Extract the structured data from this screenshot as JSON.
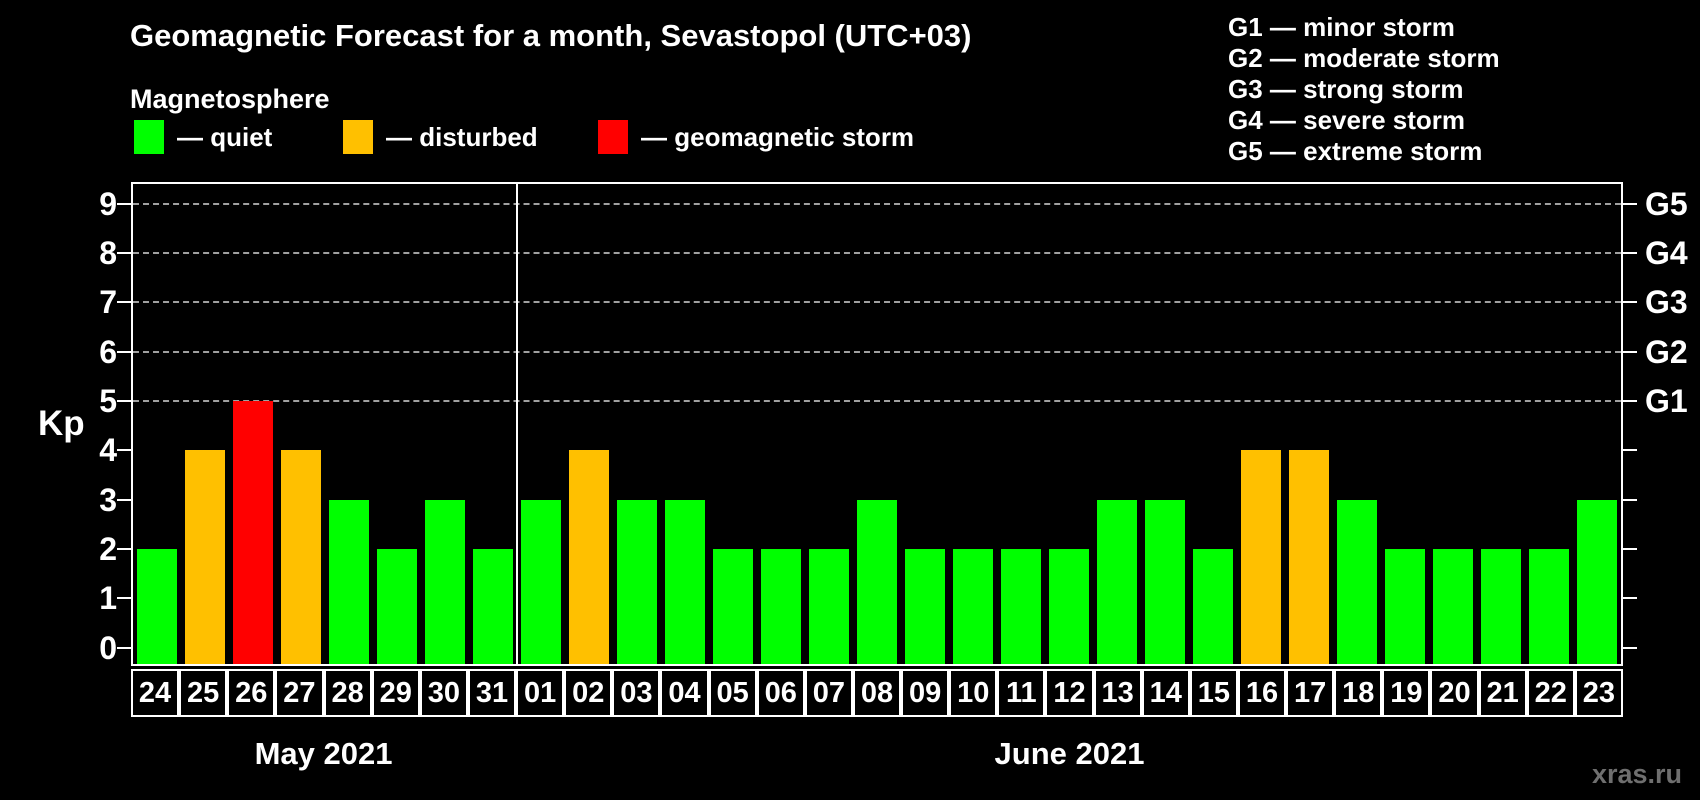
{
  "title": "Geomagnetic Forecast for a month, Sevastopol (UTC+03)",
  "subtitle": "Magnetosphere",
  "legend": {
    "items": [
      {
        "id": "quiet",
        "label": "— quiet",
        "color": "#00ff00"
      },
      {
        "id": "disturbed",
        "label": "— disturbed",
        "color": "#ffc000"
      },
      {
        "id": "storm",
        "label": "— geomagnetic storm",
        "color": "#ff0000"
      }
    ]
  },
  "storm_scale": {
    "lines": [
      "G1 — minor storm",
      "G2 — moderate storm",
      "G3 — strong storm",
      "G4 — severe storm",
      "G5 — extreme storm"
    ]
  },
  "watermark": "xras.ru",
  "chart_data": {
    "type": "bar",
    "title": "Geomagnetic Forecast for a month, Sevastopol (UTC+03)",
    "ylabel": "Kp",
    "ylim": [
      0,
      9
    ],
    "yticks": [
      0,
      1,
      2,
      3,
      4,
      5,
      6,
      7,
      8,
      9
    ],
    "gridlines_at": [
      5,
      6,
      7,
      8,
      9
    ],
    "grid": "dashed horizontal at G-storm levels only",
    "right_axis": [
      {
        "kp": 5,
        "label": "G1"
      },
      {
        "kp": 6,
        "label": "G2"
      },
      {
        "kp": 7,
        "label": "G3"
      },
      {
        "kp": 8,
        "label": "G4"
      },
      {
        "kp": 9,
        "label": "G5"
      }
    ],
    "months": [
      {
        "label": "May 2021",
        "days": 8
      },
      {
        "label": "June 2021",
        "days": 23
      }
    ],
    "categories": [
      "24",
      "25",
      "26",
      "27",
      "28",
      "29",
      "30",
      "31",
      "01",
      "02",
      "03",
      "04",
      "05",
      "06",
      "07",
      "08",
      "09",
      "10",
      "11",
      "12",
      "13",
      "14",
      "15",
      "16",
      "17",
      "18",
      "19",
      "20",
      "21",
      "22",
      "23"
    ],
    "values": [
      2,
      4,
      5,
      4,
      3,
      2,
      3,
      2,
      3,
      4,
      3,
      3,
      2,
      2,
      2,
      3,
      2,
      2,
      2,
      2,
      3,
      3,
      2,
      4,
      4,
      3,
      2,
      2,
      2,
      2,
      3
    ],
    "statuses": [
      "quiet",
      "disturbed",
      "storm",
      "disturbed",
      "quiet",
      "quiet",
      "quiet",
      "quiet",
      "quiet",
      "disturbed",
      "quiet",
      "quiet",
      "quiet",
      "quiet",
      "quiet",
      "quiet",
      "quiet",
      "quiet",
      "quiet",
      "quiet",
      "quiet",
      "quiet",
      "quiet",
      "disturbed",
      "disturbed",
      "quiet",
      "quiet",
      "quiet",
      "quiet",
      "quiet",
      "quiet"
    ],
    "colors_by_status": {
      "quiet": "#00ff00",
      "disturbed": "#ffc000",
      "storm": "#ff0000"
    },
    "axis_color": "#ffffff",
    "gridline_color": "#a0a0a0",
    "background_color": "#000000"
  }
}
